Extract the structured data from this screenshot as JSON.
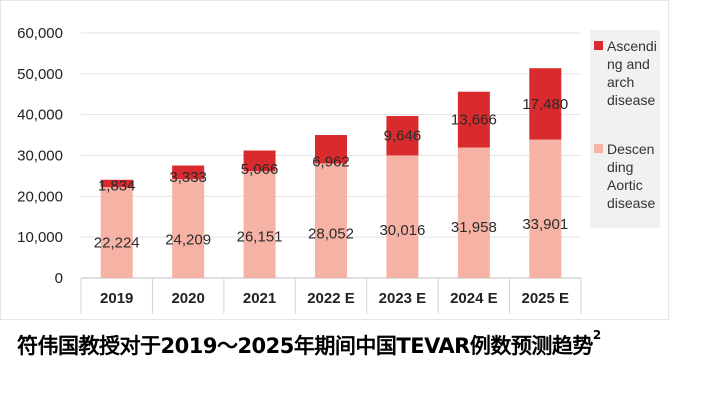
{
  "chart_data": {
    "type": "bar",
    "stacked": true,
    "title": "",
    "xlabel": "",
    "ylabel": "",
    "ylim": [
      0,
      60000
    ],
    "yticks": [
      0,
      10000,
      20000,
      30000,
      40000,
      50000,
      60000
    ],
    "ytick_labels": [
      "0",
      "10,000",
      "20,000",
      "30,000",
      "40,000",
      "50,000",
      "60,000"
    ],
    "grid": true,
    "legend_position": "right",
    "categories": [
      "2019",
      "2020",
      "2021",
      "2022 E",
      "2023 E",
      "2024 E",
      "2025 E"
    ],
    "series": [
      {
        "name": "Descending Aortic disease",
        "legend_lines": [
          "Descen",
          "ding",
          "Aortic",
          "disease"
        ],
        "color": "#f6b3a5",
        "values": [
          22224,
          24209,
          26151,
          28052,
          30016,
          31958,
          33901
        ],
        "labels": [
          "22,224",
          "24,209",
          "26,151",
          "28,052",
          "30,016",
          "31,958",
          "33,901"
        ]
      },
      {
        "name": "Ascending and arch disease",
        "legend_lines": [
          "Ascendi",
          "ng and",
          "arch",
          "disease"
        ],
        "color": "#d92b2e",
        "values": [
          1834,
          3333,
          5066,
          6962,
          9646,
          13666,
          17480
        ],
        "labels": [
          "1,834",
          "3,333",
          "5,066",
          "6,962",
          "9,646",
          "13,666",
          "17,480"
        ]
      }
    ]
  },
  "caption": {
    "text": "符伟国教授对于2019～2025年期间中国TEVAR例数预测趋势",
    "superscript": "2"
  }
}
